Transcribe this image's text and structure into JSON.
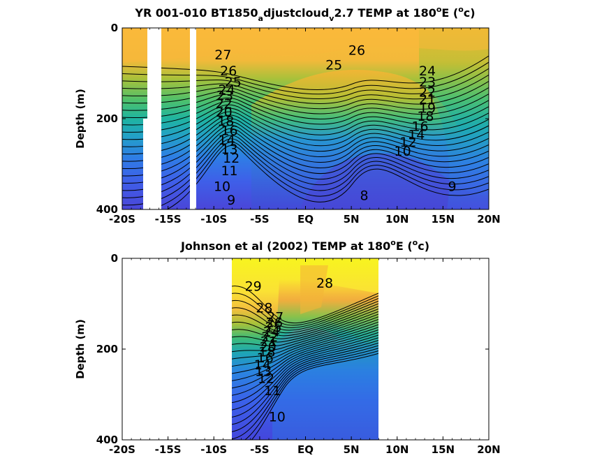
{
  "chart_data": [
    {
      "type": "heatmap",
      "title": {
        "main": "YR 001-010 BT1850",
        "sub1": "a",
        "mid": "djustcloud",
        "sub2": "v",
        "post": "2.7 TEMP at 180",
        "sup1": "o",
        "post2": "E (",
        "sup2": "o",
        "end": "c)"
      },
      "xlabel": "",
      "ylabel": "Depth (m)",
      "xlim": [
        -20,
        20
      ],
      "ylim": [
        400,
        0
      ],
      "x_ticks": [
        -20,
        -15,
        -10,
        -5,
        0,
        5,
        10,
        15,
        20
      ],
      "x_tick_labels": [
        "-20S",
        "-15S",
        "-10S",
        "-5S",
        "EQ",
        "5N",
        "10N",
        "15N",
        "20N"
      ],
      "y_ticks": [
        0,
        200,
        400
      ],
      "y_tick_labels": [
        "0",
        "200",
        "400"
      ],
      "data_gaps": [
        {
          "lon_from": -18.0,
          "lon_to": -16.3,
          "depth_from": 0,
          "depth_to": 400
        },
        {
          "lon_from": -12.0,
          "lon_to": -11.3,
          "depth_from": 0,
          "depth_to": 400
        }
      ],
      "contour_labels": [
        {
          "text": "27",
          "x": -9,
          "y": 60
        },
        {
          "text": "26",
          "x": -8.4,
          "y": 95
        },
        {
          "text": "25",
          "x": -7.9,
          "y": 120
        },
        {
          "text": "24",
          "x": -8.6,
          "y": 137
        },
        {
          "text": "23",
          "x": -8.8,
          "y": 150
        },
        {
          "text": "22",
          "x": -8.9,
          "y": 168
        },
        {
          "text": "20",
          "x": -8.9,
          "y": 186
        },
        {
          "text": "18",
          "x": -8.7,
          "y": 206
        },
        {
          "text": "16",
          "x": -8.3,
          "y": 227
        },
        {
          "text": "14",
          "x": -8.6,
          "y": 248
        },
        {
          "text": "13",
          "x": -8.3,
          "y": 268
        },
        {
          "text": "12",
          "x": -8.1,
          "y": 288
        },
        {
          "text": "11",
          "x": -8.3,
          "y": 315
        },
        {
          "text": "10",
          "x": -9.1,
          "y": 350
        },
        {
          "text": "9",
          "x": -8.1,
          "y": 380
        },
        {
          "text": "26",
          "x": 5.6,
          "y": 50
        },
        {
          "text": "25",
          "x": 3.1,
          "y": 82
        },
        {
          "text": "24",
          "x": 13.3,
          "y": 95
        },
        {
          "text": "23",
          "x": 13.3,
          "y": 120
        },
        {
          "text": "22",
          "x": 13.3,
          "y": 142
        },
        {
          "text": "21",
          "x": 13.3,
          "y": 158
        },
        {
          "text": "19",
          "x": 13.3,
          "y": 178
        },
        {
          "text": "18",
          "x": 13.1,
          "y": 195
        },
        {
          "text": "16",
          "x": 12.5,
          "y": 218
        },
        {
          "text": "14",
          "x": 12.1,
          "y": 236
        },
        {
          "text": "12",
          "x": 11.2,
          "y": 252
        },
        {
          "text": "10",
          "x": 10.6,
          "y": 272
        },
        {
          "text": "9",
          "x": 16,
          "y": 350
        },
        {
          "text": "8",
          "x": 6.4,
          "y": 370
        }
      ]
    },
    {
      "type": "heatmap",
      "title": {
        "main": "Johnson et al (2002) TEMP at 180",
        "sup1": "o",
        "post2": "E (",
        "sup2": "o",
        "end": "c)"
      },
      "xlabel": "",
      "ylabel": "Depth (m)",
      "xlim": [
        -20,
        20
      ],
      "ylim": [
        400,
        0
      ],
      "x_ticks": [
        -20,
        -15,
        -10,
        -5,
        0,
        5,
        10,
        15,
        20
      ],
      "x_tick_labels": [
        "-20S",
        "-15S",
        "-10S",
        "-5S",
        "EQ",
        "5N",
        "10N",
        "15N",
        "20N"
      ],
      "y_ticks": [
        0,
        200,
        400
      ],
      "y_tick_labels": [
        "0",
        "200",
        "400"
      ],
      "data_extent": {
        "lon_from": -8,
        "lon_to": 8,
        "depth_from": 0,
        "depth_to": 400
      },
      "contour_labels": [
        {
          "text": "29",
          "x": -5.7,
          "y": 62
        },
        {
          "text": "28",
          "x": 2.1,
          "y": 55
        },
        {
          "text": "28",
          "x": -4.5,
          "y": 110
        },
        {
          "text": "27",
          "x": -3.3,
          "y": 130
        },
        {
          "text": "26",
          "x": -3.4,
          "y": 142
        },
        {
          "text": "25",
          "x": -3.5,
          "y": 152
        },
        {
          "text": "24",
          "x": -3.7,
          "y": 162
        },
        {
          "text": "22",
          "x": -3.9,
          "y": 174
        },
        {
          "text": "21",
          "x": -4,
          "y": 184
        },
        {
          "text": "20",
          "x": -4.1,
          "y": 196
        },
        {
          "text": "18",
          "x": -4.2,
          "y": 207
        },
        {
          "text": "16",
          "x": -4.4,
          "y": 220
        },
        {
          "text": "14",
          "x": -4.7,
          "y": 235
        },
        {
          "text": "13",
          "x": -4.6,
          "y": 250
        },
        {
          "text": "12",
          "x": -4.3,
          "y": 265
        },
        {
          "text": "11",
          "x": -3.6,
          "y": 292
        },
        {
          "text": "10",
          "x": -3.1,
          "y": 350
        }
      ]
    }
  ]
}
